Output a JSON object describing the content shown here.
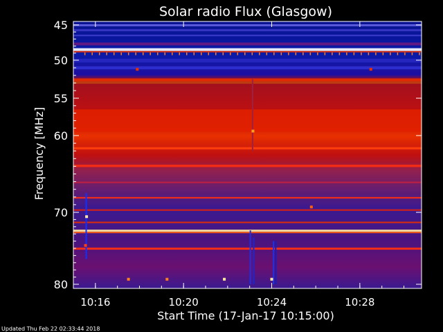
{
  "chart_data": {
    "type": "heatmap",
    "title": "Solar radio Flux (Glasgow)",
    "xlabel": "Start Time (17-Jan-17 10:15:00)",
    "ylabel": "Frequency [MHz]",
    "footer": "Updated Thu Feb 22 02:33:44 2018",
    "x_ticks": [
      {
        "minute": 1,
        "label": "10:16"
      },
      {
        "minute": 5,
        "label": "10:20"
      },
      {
        "minute": 9,
        "label": "10:24"
      },
      {
        "minute": 13,
        "label": "10:28"
      }
    ],
    "y_ticks": [
      {
        "mhz": 45,
        "label": "45"
      },
      {
        "mhz": 50,
        "label": "50"
      },
      {
        "mhz": 55,
        "label": "55"
      },
      {
        "mhz": 60,
        "label": "60"
      },
      {
        "mhz": 70,
        "label": "70"
      },
      {
        "mhz": 80,
        "label": "80"
      }
    ],
    "xlim_minutes": [
      0,
      15.8
    ],
    "ylim_mhz": [
      80,
      44.5
    ],
    "colors": {
      "background": "#000000",
      "low": "#0a1490",
      "mid_low": "#3a1a90",
      "mid": "#6a1070",
      "high": "#c01010",
      "very_high": "#e83000",
      "max": "#ffe8a0"
    }
  }
}
